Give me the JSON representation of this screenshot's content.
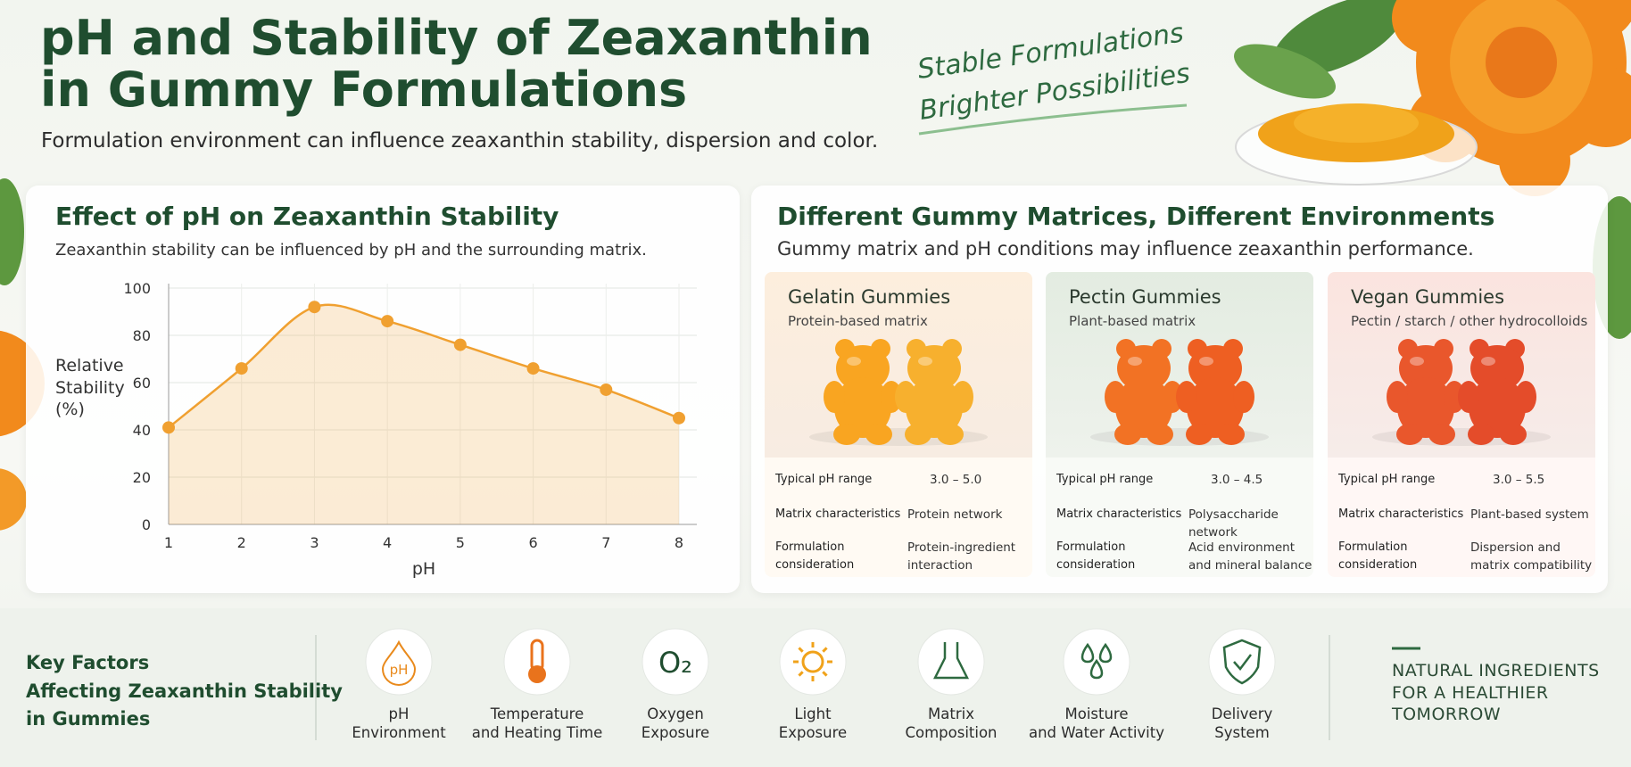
{
  "header": {
    "title": "pH and Stability of Zeaxanthin\nin Gummy Formulations",
    "subtitle": "Formulation environment can influence zeaxanthin stability, dispersion and color.",
    "tagline": [
      "Stable Formulations",
      "Brighter Possibilities"
    ]
  },
  "chart_data": {
    "type": "line",
    "title": "Effect of pH on Zeaxanthin Stability",
    "subtitle": "Zeaxanthin stability can be influenced by pH and the surrounding matrix.",
    "ylabel": "Relative\nStability\n(%)",
    "xlabel": "pH",
    "x": [
      1,
      2,
      3,
      4,
      5,
      6,
      7,
      8
    ],
    "values": [
      41,
      66,
      92,
      86,
      76,
      66,
      57,
      45
    ],
    "color": "#f0a030",
    "xlim": [
      1,
      8
    ],
    "ylim": [
      0,
      100
    ],
    "xticks": [
      1,
      2,
      3,
      4,
      5,
      6,
      7,
      8
    ],
    "yticks": [
      0,
      20,
      40,
      60,
      80,
      100
    ],
    "grid": true
  },
  "matrices": {
    "title": "Different Gummy Matrices, Different Environments",
    "subtitle": "Gummy matrix and pH conditions may influence zeaxanthin performance.",
    "cards": [
      {
        "title": "Gelatin Gummies",
        "subtitle": "Protein-based matrix",
        "rows": [
          [
            "Typical pH range",
            "3.0 – 5.0"
          ],
          [
            "Matrix characteristics",
            "Protein network"
          ],
          [
            "Formulation\nconsideration",
            "Protein-ingredient\ninteraction"
          ]
        ]
      },
      {
        "title": "Pectin Gummies",
        "subtitle": "Plant-based matrix",
        "rows": [
          [
            "Typical pH range",
            "3.0 – 4.5"
          ],
          [
            "Matrix characteristics",
            "Polysaccharide network"
          ],
          [
            "Formulation\nconsideration",
            "Acid environment\nand mineral balance"
          ]
        ]
      },
      {
        "title": "Vegan Gummies",
        "subtitle": "Pectin / starch / other hydrocolloids",
        "rows": [
          [
            "Typical pH range",
            "3.0 – 5.5"
          ],
          [
            "Matrix characteristics",
            "Plant-based system"
          ],
          [
            "Formulation\nconsideration",
            "Dispersion and\nmatrix compatibility"
          ]
        ]
      }
    ]
  },
  "factors": {
    "title": "Key Factors\nAffecting Zeaxanthin Stability\nin Gummies",
    "items": [
      {
        "label": "pH\nEnvironment",
        "icon_label": "pH"
      },
      {
        "label": "Temperature\nand Heating Time"
      },
      {
        "label": "Oxygen\nExposure",
        "icon_label": "O₂"
      },
      {
        "label": "Light\nExposure"
      },
      {
        "label": "Matrix\nComposition"
      },
      {
        "label": "Moisture\nand Water Activity"
      },
      {
        "label": "Delivery\nSystem"
      }
    ]
  },
  "footer": {
    "slogan": "NATURAL INGREDIENTS\nFOR A HEALTHIER\nTOMORROW"
  }
}
